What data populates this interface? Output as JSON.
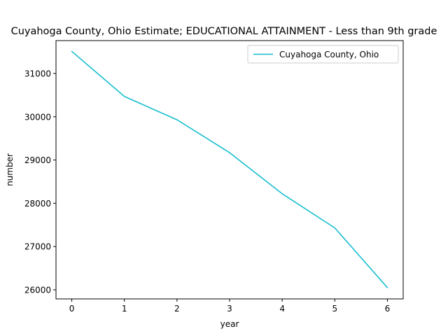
{
  "chart_data": {
    "type": "line",
    "title": "Cuyahoga County, Ohio Estimate; EDUCATIONAL ATTAINMENT - Less than 9th grade",
    "xlabel": "year",
    "ylabel": "number",
    "x": [
      0,
      1,
      2,
      3,
      4,
      5,
      6
    ],
    "xticks": [
      "0",
      "1",
      "2",
      "3",
      "4",
      "5",
      "6"
    ],
    "yticks": [
      "26000",
      "27000",
      "28000",
      "29000",
      "30000",
      "31000"
    ],
    "xlim": [
      -0.3,
      6.3
    ],
    "ylim": [
      25790,
      31760
    ],
    "grid": false,
    "legend_position": "top-right",
    "series": [
      {
        "name": "Cuyahoga County, Ohio",
        "color": "#17becf",
        "values": [
          31510,
          30470,
          29930,
          29170,
          28220,
          27430,
          26050
        ]
      }
    ]
  }
}
